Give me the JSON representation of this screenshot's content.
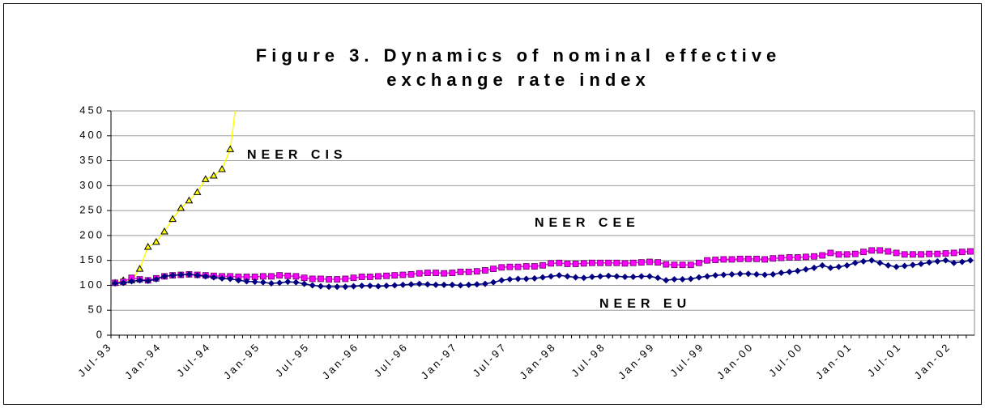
{
  "chart_data": {
    "type": "line",
    "title": [
      "Figure 3. Dynamics of nominal effective",
      "exchange rate index"
    ],
    "categories": [
      "Jul-93",
      null,
      null,
      null,
      null,
      null,
      "Jan-94",
      null,
      null,
      null,
      null,
      null,
      "Jul-94",
      null,
      null,
      null,
      null,
      null,
      "Jan-95",
      null,
      null,
      null,
      null,
      null,
      "Jul-95",
      null,
      null,
      null,
      null,
      null,
      "Jan-96",
      null,
      null,
      null,
      null,
      null,
      "Jul-96",
      null,
      null,
      null,
      null,
      null,
      "Jan-97",
      null,
      null,
      null,
      null,
      null,
      "Jul-97",
      null,
      null,
      null,
      null,
      null,
      "Jan-98",
      null,
      null,
      null,
      null,
      null,
      "Jul-98",
      null,
      null,
      null,
      null,
      null,
      "Jan-99",
      null,
      null,
      null,
      null,
      null,
      "Jul-99",
      null,
      null,
      null,
      null,
      null,
      "Jan-00",
      null,
      null,
      null,
      null,
      null,
      "Jul-00",
      null,
      null,
      null,
      null,
      null,
      "Jan-01",
      null,
      null,
      null,
      null,
      null,
      "Jul-01",
      null,
      null,
      null,
      null,
      null,
      "Jan-02",
      null,
      null
    ],
    "series": [
      {
        "name": "NEER CIS",
        "color": "#ffff00",
        "marker": "triangle",
        "values": [
          105,
          110,
          110,
          133,
          177,
          187,
          208,
          233,
          255,
          270,
          287,
          313,
          320,
          333,
          373,
          500,
          null,
          null,
          null,
          null,
          null,
          null,
          null,
          null,
          null,
          null,
          null,
          null,
          null,
          null,
          null,
          null,
          null,
          null,
          null,
          null,
          null,
          null,
          null,
          null,
          null,
          null,
          null,
          null,
          null,
          null,
          null,
          null,
          null,
          null,
          null,
          null,
          null,
          null,
          null,
          null,
          null,
          null,
          null,
          null,
          null,
          null,
          null,
          null,
          null,
          null,
          null,
          null,
          null,
          null,
          null,
          null,
          null,
          null,
          null,
          null,
          null,
          null,
          null,
          null,
          null,
          null,
          null,
          null,
          null,
          null,
          null,
          null,
          null,
          null,
          null,
          null,
          null,
          null,
          null,
          null,
          null,
          null,
          null,
          null,
          null,
          null,
          null,
          null,
          null
        ]
      },
      {
        "name": "NEER CEE",
        "color": "#ff00ff",
        "marker": "square",
        "values": [
          105,
          107,
          115,
          112,
          110,
          114,
          118,
          120,
          121,
          122,
          121,
          120,
          119,
          118,
          118,
          117,
          117,
          117,
          118,
          118,
          120,
          119,
          118,
          115,
          113,
          113,
          112,
          112,
          113,
          115,
          117,
          117,
          118,
          119,
          120,
          121,
          122,
          124,
          125,
          125,
          124,
          125,
          127,
          127,
          128,
          130,
          133,
          136,
          137,
          137,
          138,
          138,
          140,
          144,
          145,
          143,
          143,
          144,
          145,
          145,
          145,
          145,
          144,
          145,
          146,
          147,
          146,
          142,
          141,
          141,
          141,
          145,
          150,
          151,
          152,
          152,
          153,
          153,
          153,
          152,
          154,
          155,
          156,
          156,
          157,
          158,
          160,
          165,
          162,
          162,
          163,
          167,
          170,
          170,
          168,
          165,
          162,
          162,
          162,
          163,
          163,
          164,
          165,
          167,
          168
        ]
      },
      {
        "name": "NEER EU",
        "color": "#000080",
        "marker": "diamond",
        "values": [
          104,
          105,
          108,
          110,
          109,
          112,
          118,
          120,
          121,
          122,
          120,
          118,
          116,
          114,
          113,
          110,
          108,
          107,
          106,
          104,
          105,
          107,
          106,
          103,
          100,
          98,
          97,
          97,
          97,
          98,
          99,
          99,
          98,
          99,
          100,
          101,
          102,
          103,
          102,
          101,
          101,
          101,
          100,
          101,
          102,
          103,
          106,
          110,
          112,
          113,
          113,
          114,
          116,
          118,
          120,
          118,
          116,
          115,
          117,
          118,
          119,
          118,
          117,
          117,
          118,
          118,
          115,
          110,
          112,
          112,
          113,
          116,
          118,
          120,
          121,
          122,
          123,
          123,
          122,
          121,
          122,
          125,
          127,
          129,
          132,
          135,
          140,
          135,
          137,
          140,
          145,
          148,
          150,
          145,
          140,
          137,
          139,
          141,
          143,
          146,
          148,
          150,
          145,
          147,
          150
        ]
      }
    ],
    "ylim": [
      0,
      450
    ],
    "yticks": [
      0,
      50,
      100,
      150,
      200,
      250,
      300,
      350,
      400,
      450
    ],
    "grid": true
  }
}
